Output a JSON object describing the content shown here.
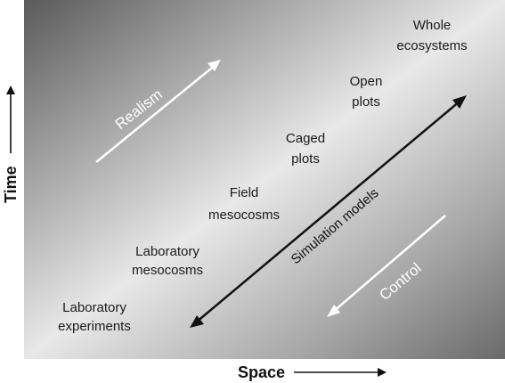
{
  "axes": {
    "x_label": "Space",
    "y_label": "Time"
  },
  "arrows": {
    "realism": "Realism",
    "control": "Control",
    "simulation": "Simulation models"
  },
  "stages": {
    "s1": {
      "line1": "Laboratory",
      "line2": "experiments"
    },
    "s2": {
      "line1": "Laboratory",
      "line2": "mesocosms"
    },
    "s3": {
      "line1": "Field",
      "line2": "mesocosms"
    },
    "s4": {
      "line1": "Caged",
      "line2": "plots"
    },
    "s5": {
      "line1": "Open",
      "line2": "plots"
    },
    "s6": {
      "line1": "Whole",
      "line2": "ecosystems"
    }
  },
  "colors": {
    "panel_dark": "#5f5f5f",
    "panel_light": "#e6e6e6",
    "white_arrow": "#ffffff",
    "dark_arrow": "#111111"
  }
}
